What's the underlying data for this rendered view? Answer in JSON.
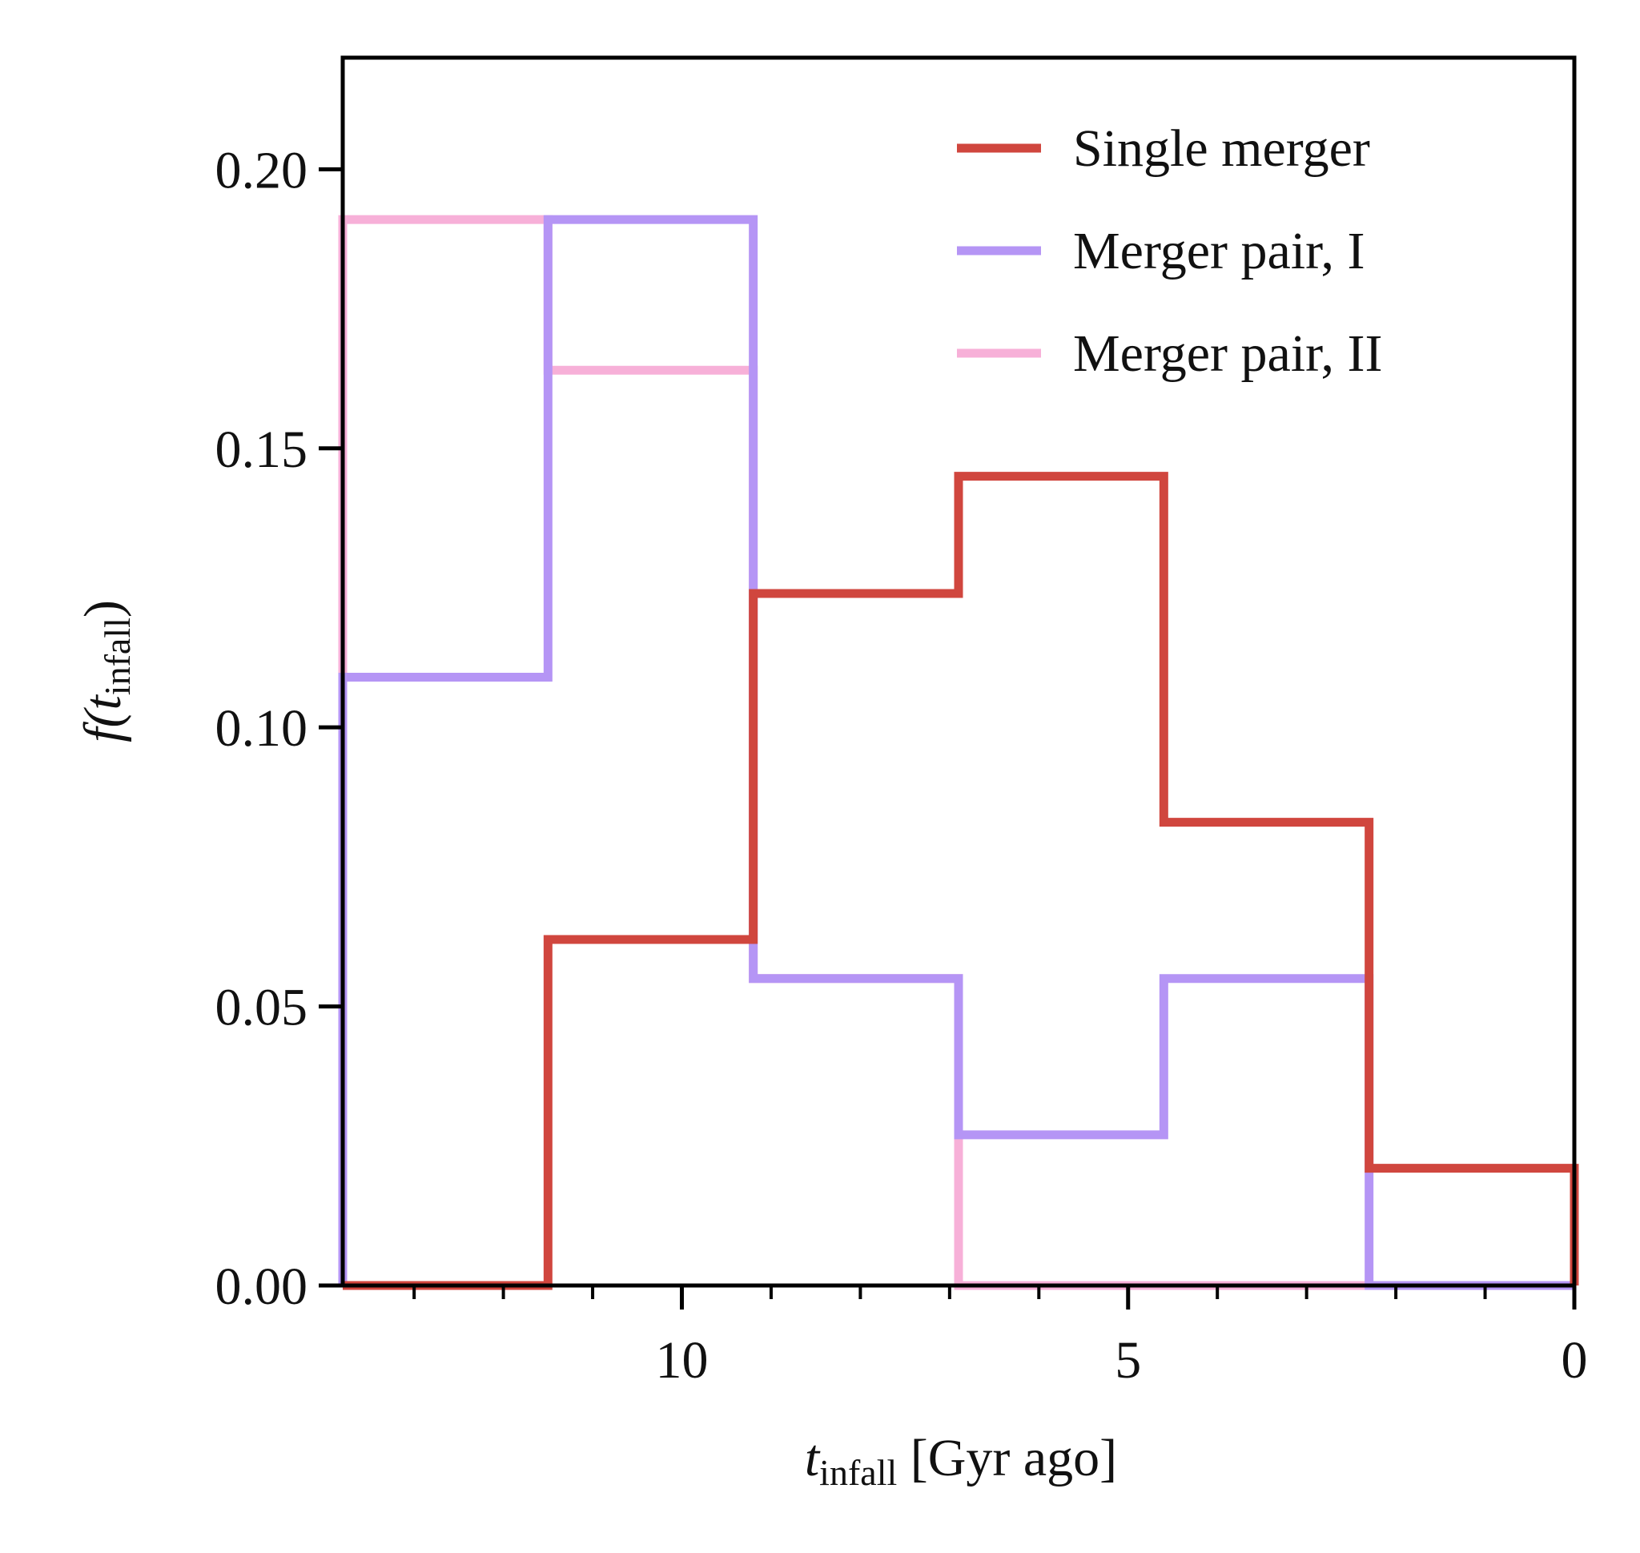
{
  "chart_data": {
    "type": "histogram-step",
    "xlabel": {
      "var": "t",
      "sub": "infall",
      "rest": " [Gyr ago]"
    },
    "ylabel": {
      "pre": "f(",
      "var": "t",
      "sub": "infall",
      "post": ")"
    },
    "xlim": [
      13.8,
      0
    ],
    "ylim": [
      0,
      0.22
    ],
    "x_inverted": true,
    "x_major_ticks": [
      10,
      5,
      0
    ],
    "x_major_labels": [
      "10",
      "5",
      "0"
    ],
    "x_minor_ticks": [
      13,
      12,
      11,
      9,
      8,
      7,
      6,
      4,
      3,
      2,
      1
    ],
    "y_ticks": [
      0.0,
      0.05,
      0.1,
      0.15,
      0.2
    ],
    "y_tick_labels": [
      "0.00",
      "0.05",
      "0.10",
      "0.15",
      "0.20"
    ],
    "bin_edges": [
      13.8,
      11.5,
      9.2,
      6.9,
      4.6,
      2.3,
      0.0
    ],
    "grid": false,
    "legend_position": "top-right",
    "series": [
      {
        "name": "Single merger",
        "color": "#d0463e",
        "values": [
          0.0,
          0.062,
          0.124,
          0.145,
          0.083,
          0.021
        ]
      },
      {
        "name": "Merger pair, I",
        "color": "#b595f5",
        "values": [
          0.109,
          0.191,
          0.055,
          0.027,
          0.055,
          0.0
        ]
      },
      {
        "name": "Merger pair, II",
        "color": "#f7b0d8",
        "values": [
          0.191,
          0.164,
          0.055,
          0.0,
          0.0,
          0.0
        ]
      }
    ]
  }
}
